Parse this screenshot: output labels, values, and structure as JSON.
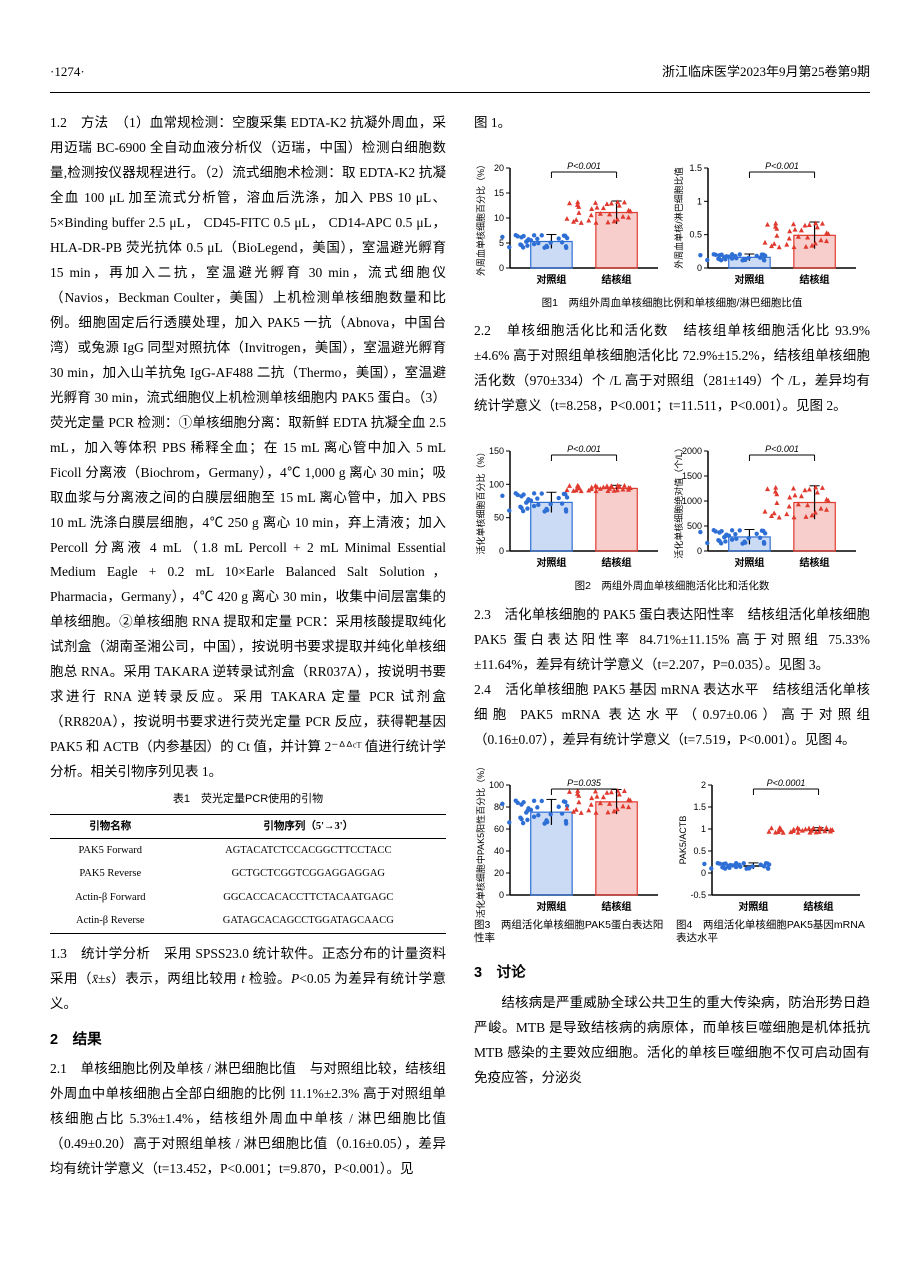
{
  "header": {
    "page": "·1274·",
    "journal": "浙江临床医学2023年9月第25卷第9期"
  },
  "left": {
    "p1": "1.2　方法　（1）血常规检测：空腹采集 EDTA-K2 抗凝外周血，采用迈瑞 BC-6900 全自动血液分析仪（迈瑞，中国）检测白细胞数量,检测按仪器规程进行。（2）流式细胞术检测：取 EDTA-K2 抗凝全血 100 μL 加至流式分析管，溶血后洗涤，加入 PBS 10 μL、5×Binding buffer 2.5 μL， CD45-FITC 0.5 μL， CD14-APC 0.5 μL，HLA-DR-PB 荧光抗体 0.5 μL（BioLegend，美国），室温避光孵育 15 min，再加入二抗，室温避光孵育 30 min，流式细胞仪（Navios，Beckman Coulter，美国）上机检测单核细胞数量和比例。细胞固定后行透膜处理，加入 PAK5 一抗（Abnova，中国台湾）或兔源 IgG 同型对照抗体（Invitrogen，美国），室温避光孵育 30 min，加入山羊抗兔 IgG-AF488 二抗（Thermo，美国），室温避光孵育 30 min，流式细胞仪上机检测单核细胞内 PAK5 蛋白。（3）荧光定量 PCR 检测：①单核细胞分离：取新鲜 EDTA 抗凝全血 2.5 mL，加入等体积 PBS 稀释全血；在 15 mL 离心管中加入 5 mL Ficoll 分离液（Biochrom，Germany），4℃ 1,000 g 离心 30 min；吸取血浆与分离液之间的白膜层细胞至 15 mL 离心管中，加入 PBS 10 mL 洗涤白膜层细胞，4℃ 250 g 离心 10 min，弃上清液；加入 Percoll 分离液 4 mL（1.8 mL Percoll + 2 mL Minimal Essential Medium Eagle + 0.2 mL 10×Earle Balanced Salt Solution，Pharmacia，Germany），4℃ 420 g 离心 30 min，收集中间层富集的单核细胞。②单核细胞 RNA 提取和定量 PCR：采用核酸提取纯化试剂盒（湖南圣湘公司，中国），按说明书要求提取并纯化单核细胞总 RNA。采用 TAKARA 逆转录试剂盒（RR037A），按说明书要求进行 RNA 逆转录反应。采用 TAKARA 定量 PCR 试剂盒（RR820A），按说明书要求进行荧光定量 PCR 反应，获得靶基因 PAK5 和 ACTB（内参基因）的 Ct 值，并计算 2⁻ᐞᐞᶜᵀ 值进行统计学分析。相关引物序列见表 1。",
    "table1_title": "表1　荧光定量PCR使用的引物",
    "p2a": "1.3　统计学分析　采用 SPSS23.0 统计软件。正态分布的计量资料采用（",
    "p2b": "）表示，两组比较用 ",
    "p2c": " 检验。",
    "p2d": "<0.05 为差异有统计学意义。",
    "xbar": "x̄±s",
    "t": "t",
    "P": "P",
    "s2": "2　结果",
    "p3": "2.1　单核细胞比例及单核 / 淋巴细胞比值　与对照组比较，结核组外周血中单核细胞占全部白细胞的比例 11.1%±2.3% 高于对照组单核细胞占比 5.3%±1.4%，结核组外周血中单核 / 淋巴细胞比值（0.49±0.20）高于对照组单核 / 淋巴细胞比值（0.16±0.05），差异均有统计学意义（t=13.452，P<0.001；t=9.870，P<0.001）。见"
  },
  "right": {
    "fig1ref": "图 1。",
    "fig1cap": "图1　两组外周血单核细胞比例和单核细胞/淋巴细胞比值",
    "p22": "2.2　单核细胞活化比和活化数　结核组单核细胞活化比 93.9%±4.6% 高于对照组单核细胞活化比 72.9%±15.2%，结核组单核细胞活化数（970±334）个 /L 高于对照组（281±149）个 /L，差异均有统计学意义（t=8.258，P<0.001；t=11.511，P<0.001）。见图 2。",
    "fig2cap": "图2　两组外周血单核细胞活化比和活化数",
    "p23": "2.3　活化单核细胞的 PAK5 蛋白表达阳性率　结核组活化单核细胞 PAK5 蛋白表达阳性率 84.71%±11.15% 高于对照组 75.33%±11.64%，差异有统计学意义（t=2.207，P=0.035）。见图 3。",
    "p24": "2.4　活化单核细胞 PAK5 基因 mRNA 表达水平　结核组活化单核细胞 PAK5 mRNA 表达水平（0.97±0.06）高于对照组（0.16±0.07），差异有统计学意义（t=7.519，P<0.001）。见图 4。",
    "fig3cap": "图3　两组活化单核细胞PAK5蛋白表达阳性率",
    "fig4cap": "图4　两组活化单核细胞PAK5基因mRNA表达水平",
    "s3": "3　讨论",
    "p3": "　　结核病是严重威胁全球公共卫生的重大传染病，防治形势日趋严峻。MTB 是导致结核病的病原体，而单核巨噬细胞是机体抵抗 MTB 感染的主要效应细胞。活化的单核巨噬细胞不仅可启动固有免疫应答，分泌炎"
  },
  "table1": {
    "columns": [
      "引物名称",
      "引物序列（5'→3'）"
    ],
    "rows": [
      [
        "PAK5 Forward",
        "AGTACATCTCCACGGCTTCCTACC"
      ],
      [
        "PAK5 Reverse",
        "GCTGCTCGGTCGGAGGAGGAG"
      ],
      [
        "Actin-β Forward",
        "GGCACCACACCTTCTACAATGAGC"
      ],
      [
        "Actin-β Reverse",
        "GATAGCACAGCCTGGATAGCAACG"
      ]
    ]
  },
  "groups": {
    "ctrl": "对照组",
    "tb": "结核组"
  },
  "colors": {
    "ctrl": "#2e6fd6",
    "tb": "#e03a2f",
    "axis": "#000",
    "bar_border": "#000"
  },
  "fig1a": {
    "ylabel": "外周血单核细胞百分比（%）",
    "ylim": [
      0,
      20
    ],
    "yticks": [
      0,
      5,
      10,
      15,
      20
    ],
    "means": {
      "ctrl": 5.3,
      "tb": 11.1
    },
    "sd": {
      "ctrl": 1.4,
      "tb": 2.3
    },
    "plabel": "P<0.001"
  },
  "fig1b": {
    "ylabel": "外周血单核/淋巴细胞比值",
    "ylim": [
      0,
      1.5
    ],
    "yticks": [
      0,
      0.5,
      1.0,
      1.5
    ],
    "means": {
      "ctrl": 0.16,
      "tb": 0.49
    },
    "sd": {
      "ctrl": 0.05,
      "tb": 0.2
    },
    "plabel": "P<0.001"
  },
  "fig2a": {
    "ylabel": "活化单核细胞百分比（%）",
    "ylim": [
      0,
      150
    ],
    "yticks": [
      0,
      50,
      100,
      150
    ],
    "means": {
      "ctrl": 72.9,
      "tb": 93.9
    },
    "sd": {
      "ctrl": 15.2,
      "tb": 4.6
    },
    "plabel": "P<0.001"
  },
  "fig2b": {
    "ylabel": "活化单核细胞绝对值（个/L）",
    "ylim": [
      0,
      2000
    ],
    "yticks": [
      0,
      500,
      1000,
      1500,
      2000
    ],
    "means": {
      "ctrl": 281,
      "tb": 970
    },
    "sd": {
      "ctrl": 149,
      "tb": 334
    },
    "plabel": "P<0.001"
  },
  "fig3": {
    "ylabel": "活化单核细胞中PAK5阳性百分比（%）",
    "ylim": [
      0,
      100
    ],
    "yticks": [
      0,
      20,
      40,
      60,
      80,
      100
    ],
    "means": {
      "ctrl": 75.3,
      "tb": 84.7
    },
    "sd": {
      "ctrl": 11.6,
      "tb": 11.2
    },
    "plabel": "P=0.035"
  },
  "fig4": {
    "ylabel": "PAK5/ACTB",
    "ylim": [
      -0.5,
      2.0
    ],
    "yticks": [
      -0.5,
      0,
      0.5,
      1.0,
      1.5,
      2.0
    ],
    "means": {
      "ctrl": 0.16,
      "tb": 0.97
    },
    "sd": {
      "ctrl": 0.07,
      "tb": 0.06
    },
    "plabel": "P<0.0001",
    "scatter_only": true
  }
}
